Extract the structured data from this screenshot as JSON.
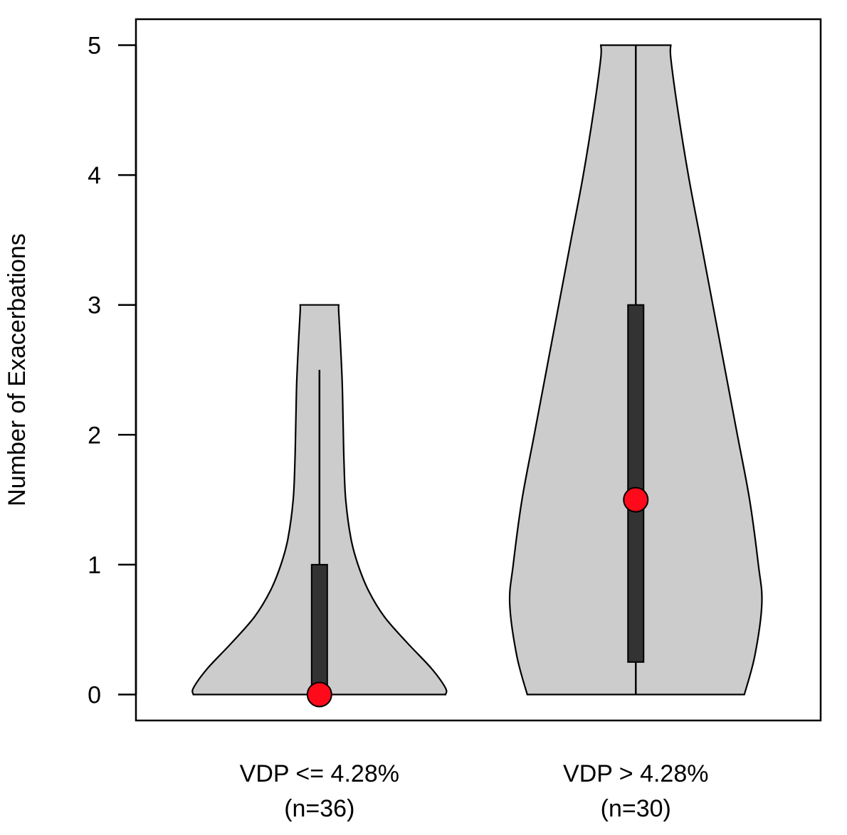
{
  "chart_data": {
    "type": "violin",
    "title": "",
    "xlabel": "",
    "ylabel": "Number of Exacerbations",
    "ylim": [
      -0.2,
      5.2
    ],
    "yticks": [
      "0",
      "1",
      "2",
      "3",
      "4",
      "5"
    ],
    "grid": false,
    "colors": {
      "violin_fill": "#cccccc",
      "box_fill": "#333333",
      "median_point": "#ff0a1a",
      "outline": "#000000"
    },
    "groups": [
      {
        "name": "VDP <= 4.28%",
        "n_label": "(n=36)",
        "median": 0,
        "q1": 0,
        "q3": 1,
        "whisker_low": 0,
        "whisker_high": 2.5,
        "min": 0,
        "max": 3,
        "density": [
          {
            "y": 0,
            "half_width": 0.72
          },
          {
            "y": 0.05,
            "half_width": 0.72
          },
          {
            "y": 0.2,
            "half_width": 0.64
          },
          {
            "y": 0.4,
            "half_width": 0.5
          },
          {
            "y": 0.6,
            "half_width": 0.37
          },
          {
            "y": 0.8,
            "half_width": 0.28
          },
          {
            "y": 1.0,
            "half_width": 0.22
          },
          {
            "y": 1.2,
            "half_width": 0.18
          },
          {
            "y": 1.5,
            "half_width": 0.15
          },
          {
            "y": 1.8,
            "half_width": 0.14
          },
          {
            "y": 2.1,
            "half_width": 0.135
          },
          {
            "y": 2.4,
            "half_width": 0.13
          },
          {
            "y": 2.7,
            "half_width": 0.12
          },
          {
            "y": 2.95,
            "half_width": 0.11
          },
          {
            "y": 3,
            "half_width": 0.11
          }
        ]
      },
      {
        "name": "VDP > 4.28%",
        "n_label": "(n=30)",
        "median": 1.5,
        "q1": 0.25,
        "q3": 3,
        "whisker_low": 0,
        "whisker_high": 5,
        "min": 0,
        "max": 5,
        "density": [
          {
            "y": 0,
            "half_width": 0.62
          },
          {
            "y": 0.3,
            "half_width": 0.68
          },
          {
            "y": 0.7,
            "half_width": 0.72
          },
          {
            "y": 1.0,
            "half_width": 0.7
          },
          {
            "y": 1.5,
            "half_width": 0.65
          },
          {
            "y": 2.0,
            "half_width": 0.58
          },
          {
            "y": 2.5,
            "half_width": 0.51
          },
          {
            "y": 3.0,
            "half_width": 0.44
          },
          {
            "y": 3.5,
            "half_width": 0.37
          },
          {
            "y": 4.0,
            "half_width": 0.3
          },
          {
            "y": 4.5,
            "half_width": 0.24
          },
          {
            "y": 4.9,
            "half_width": 0.2
          },
          {
            "y": 5,
            "half_width": 0.2
          }
        ]
      }
    ]
  }
}
